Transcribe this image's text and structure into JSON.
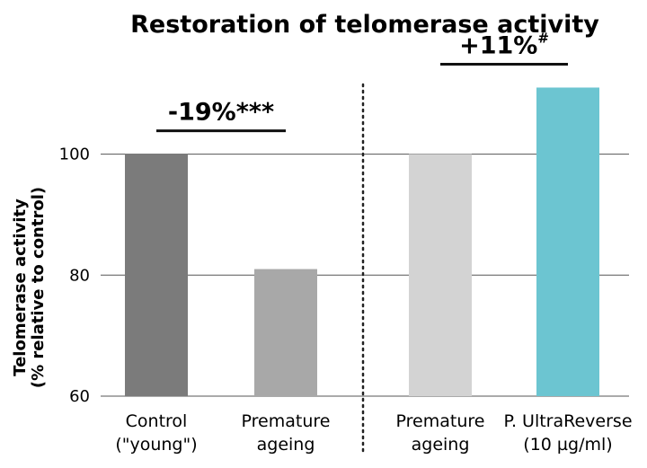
{
  "chart_data": {
    "type": "bar",
    "title": "Restoration of telomerase activity",
    "ylabel_line1": "Telomerase activity",
    "ylabel_line2": "(% relative to control)",
    "ylim": [
      60,
      113
    ],
    "yticks": [
      60,
      80,
      100
    ],
    "grid": true,
    "categories": [
      [
        "Control",
        "(\"young\")"
      ],
      [
        "Premature",
        "ageing"
      ],
      [
        "Premature",
        "ageing"
      ],
      [
        "P. UltraReverse",
        "(10 µg/ml)"
      ]
    ],
    "values": [
      100,
      81,
      100,
      111
    ],
    "bar_colors": [
      "#7b7b7b",
      "#a8a8a8",
      "#d3d3d3",
      "#6cc5d1"
    ],
    "annotations": [
      {
        "text": "-19%***",
        "sup": "",
        "bars": [
          0,
          1
        ]
      },
      {
        "text": "+11%",
        "sup": "#",
        "bars": [
          2,
          3
        ]
      }
    ],
    "separator": "dotted"
  }
}
